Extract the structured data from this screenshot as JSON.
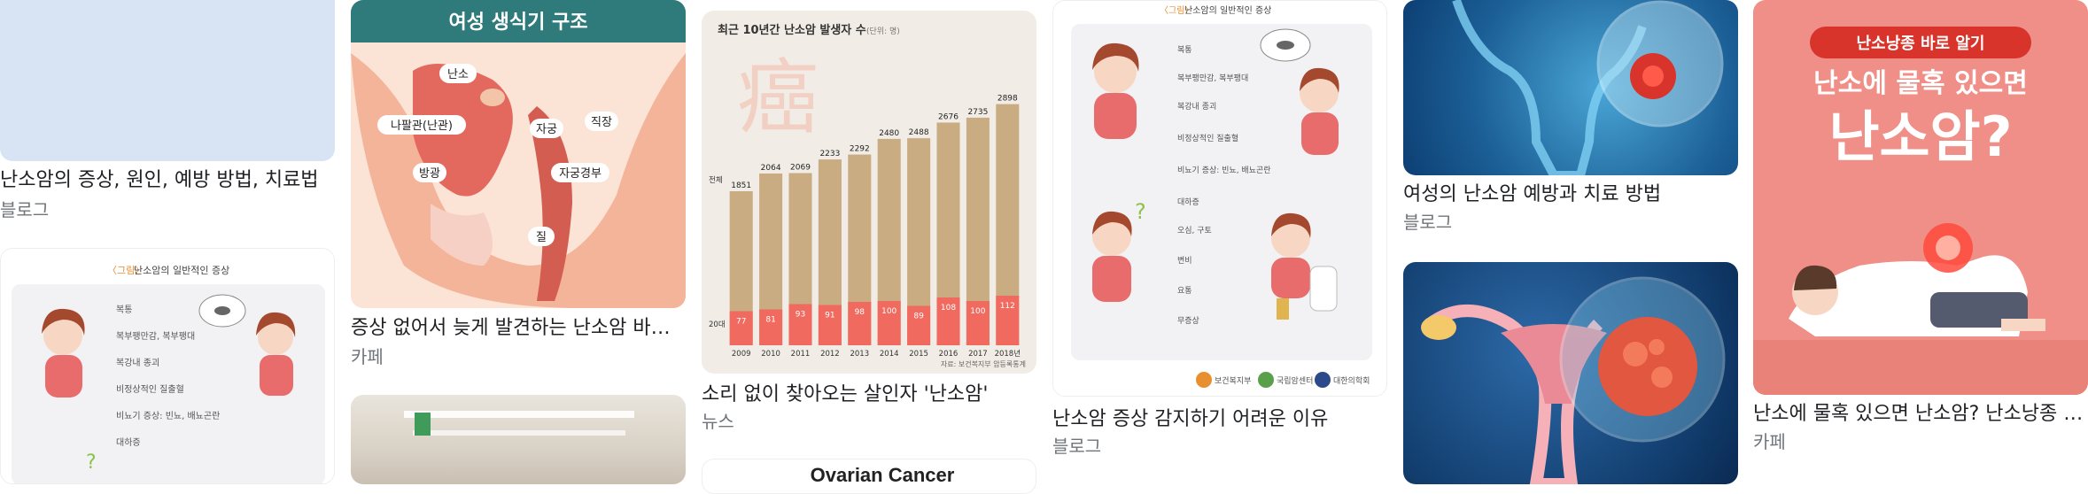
{
  "results": [
    {
      "title": "난소암의 증상, 원인, 예방 방법, 치료법",
      "source": "블로그"
    },
    {
      "title": "증상 없어서 늦게 발견하는 난소암 바로 알기",
      "source": "카페"
    },
    {
      "title": "소리 없이 찾아오는 살인자 '난소암'",
      "source": "뉴스"
    },
    {
      "title": "난소암 증상 감지하기 어려운 이유",
      "source": "블로그"
    },
    {
      "title": "여성의 난소암 예방과 치료 방법",
      "source": "블로그"
    },
    {
      "title": "난소에 물혹 있으면 난소암? 난소낭종 바로 알기",
      "source": "카페"
    }
  ],
  "anatomy": {
    "heading": "여성 생식기 구조",
    "labels": [
      "난소",
      "나팔관(난관)",
      "자궁",
      "직장",
      "방광",
      "자궁경부",
      "질"
    ]
  },
  "symptom_chart": {
    "title_prefix": "〈그림〉",
    "title": "난소암의 일반적인 증상",
    "items": [
      "복통",
      "복부팽만감, 복부팽대",
      "복강내 종괴",
      "비정상적인 질출혈",
      "비뇨기 증상: 빈뇨, 배뇨곤란",
      "대하증",
      "오심, 구토",
      "변비",
      "요통",
      "무증상"
    ],
    "footer_logos": [
      "보건복지부",
      "국립암센터",
      "대한의학회"
    ]
  },
  "chart_data": {
    "type": "bar",
    "title": "최근 10년간 난소암 발생자 수",
    "unit": "(단위: 명)",
    "categories": [
      "2009",
      "2010",
      "2011",
      "2012",
      "2013",
      "2014",
      "2015",
      "2016",
      "2017",
      "2018년"
    ],
    "series": [
      {
        "name": "전체",
        "values": [
          1851,
          2064,
          2069,
          2233,
          2292,
          2480,
          2488,
          2676,
          2735,
          2898
        ]
      },
      {
        "name": "20대",
        "values": [
          77,
          81,
          93,
          91,
          98,
          100,
          89,
          108,
          100,
          112
        ]
      }
    ],
    "watermark": "癌",
    "source": "자료: 보건복지부 암등록통계"
  },
  "cyst_image": {
    "line1": "난소낭종 바로 알기",
    "line2": "난소에 물혹 있으면",
    "line3": "난소암?"
  },
  "ovarian_cancer_text": "Ovarian Cancer",
  "colors": {
    "title": "#202124",
    "source": "#70757a",
    "pink_bg": "#ef8f87",
    "red": "#d9342b",
    "teal": "#2f7a7a",
    "bar_total": "#c9ac82",
    "bar_20s": "#f06a60",
    "blue_xray": "#0d3f73"
  }
}
